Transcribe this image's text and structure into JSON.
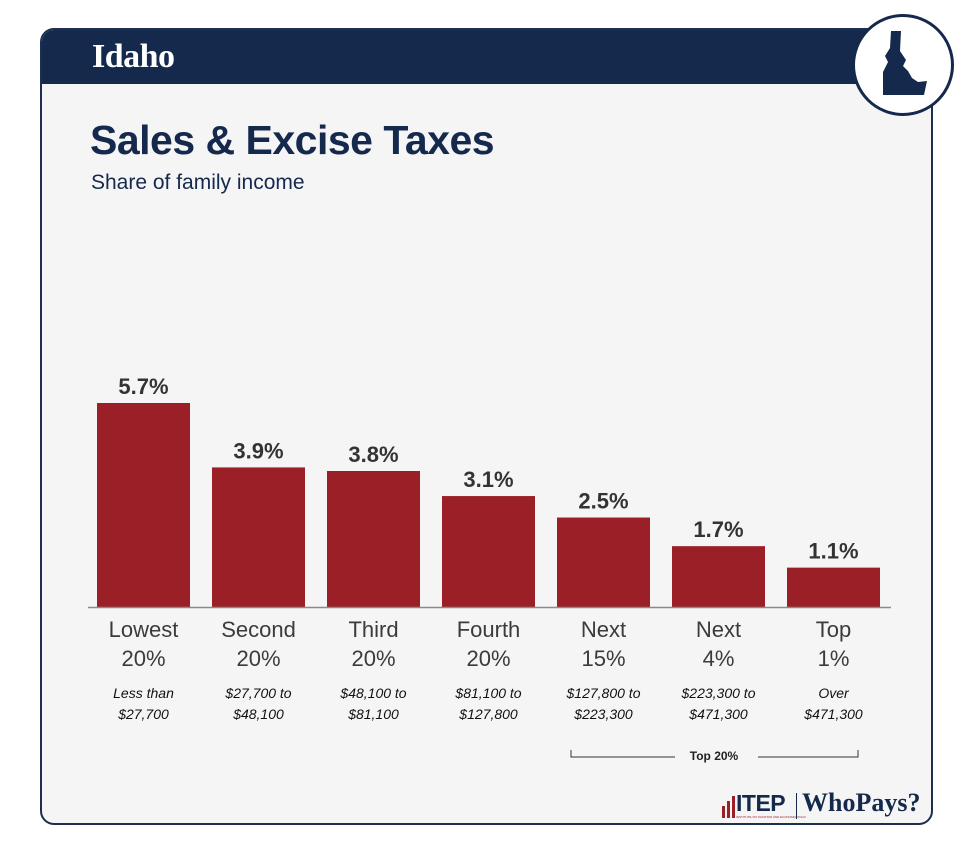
{
  "header": {
    "state": "Idaho",
    "state_icon": "idaho-state-map-icon"
  },
  "colors": {
    "navy": "#15294d",
    "bar": "#9a1f27",
    "card": "#f5f5f5"
  },
  "chart_data": {
    "type": "bar",
    "title": "Sales & Excise Taxes",
    "subtitle": "Share of family income",
    "categories": [
      "Lowest\n20%",
      "Second\n20%",
      "Third\n20%",
      "Fourth\n20%",
      "Next\n15%",
      "Next\n4%",
      "Top\n1%"
    ],
    "income_ranges": [
      "Less than\n$27,700",
      "$27,700 to\n$48,100",
      "$48,100 to\n$81,100",
      "$81,100 to\n$127,800",
      "$127,800 to\n$223,300",
      "$223,300 to\n$471,300",
      "Over\n$471,300"
    ],
    "values": [
      5.7,
      3.9,
      3.8,
      3.1,
      2.5,
      1.7,
      1.1
    ],
    "value_labels": [
      "5.7%",
      "3.9%",
      "3.8%",
      "3.1%",
      "2.5%",
      "1.7%",
      "1.1%"
    ],
    "ylim": [
      0,
      5.7
    ],
    "grid": false,
    "bracket_label": "Top 20%"
  },
  "footer": {
    "itep_label": "ITEP",
    "itep_sub": "INSTITUTE ON TAXATION AND ECONOMIC POLICY",
    "whopays_label": "WhoPays?"
  }
}
